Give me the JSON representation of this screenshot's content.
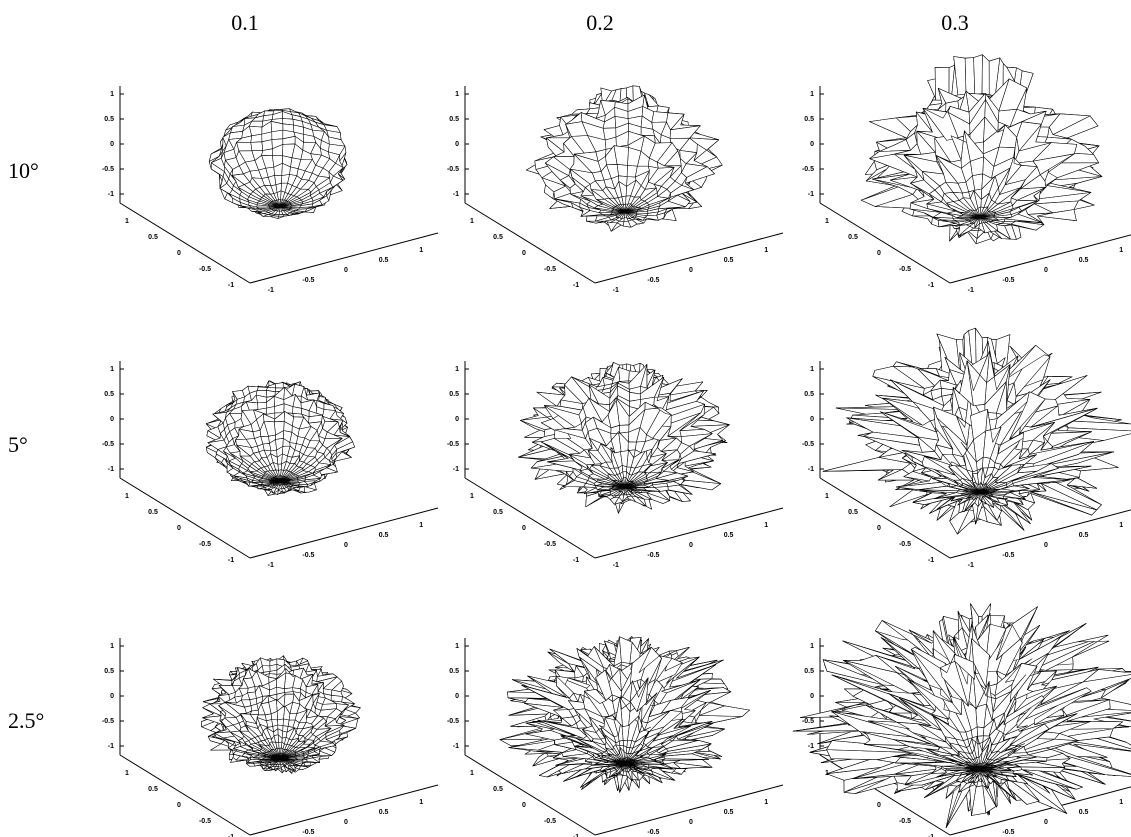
{
  "column_labels": [
    "0.1",
    "0.2",
    "0.3"
  ],
  "row_labels": [
    "10°",
    "5°",
    "2.5°"
  ],
  "axes": {
    "z_ticks": [
      "1",
      "0.5",
      "0",
      "-0.5",
      "-1"
    ],
    "x_ticks": [
      "1",
      "0.5",
      "0",
      "-0.5",
      "-1"
    ],
    "y_ticks": [
      "-1",
      "-0.5",
      "0",
      "0.5",
      "1"
    ]
  }
}
